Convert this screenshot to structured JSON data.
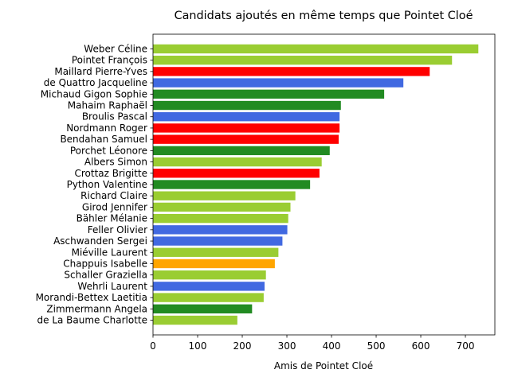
{
  "chart_data": {
    "type": "bar",
    "orientation": "horizontal",
    "title": "Candidats ajoutés en même temps que Pointet Cloé",
    "xlabel": "Amis de Pointet Cloé",
    "ylabel": "",
    "xlim": [
      0,
      766
    ],
    "xticks": [
      0,
      100,
      200,
      300,
      400,
      500,
      600,
      700
    ],
    "grid": false,
    "legend": "none",
    "colors": {
      "lightgreen": "#9acd32",
      "red": "#ff0000",
      "blue": "#4169e1",
      "darkgreen": "#228b22",
      "orange": "#ffa500"
    },
    "bars": [
      {
        "label": "Weber Céline",
        "value": 729,
        "color": "lightgreen"
      },
      {
        "label": "Pointet François",
        "value": 670,
        "color": "lightgreen"
      },
      {
        "label": "Maillard Pierre-Yves",
        "value": 620,
        "color": "red"
      },
      {
        "label": "de Quattro Jacqueline",
        "value": 561,
        "color": "blue"
      },
      {
        "label": "Michaud Gigon Sophie",
        "value": 518,
        "color": "darkgreen"
      },
      {
        "label": "Mahaim Raphaël",
        "value": 421,
        "color": "darkgreen"
      },
      {
        "label": "Broulis Pascal",
        "value": 418,
        "color": "blue"
      },
      {
        "label": "Nordmann Roger",
        "value": 418,
        "color": "red"
      },
      {
        "label": "Bendahan Samuel",
        "value": 416,
        "color": "red"
      },
      {
        "label": "Porchet Léonore",
        "value": 396,
        "color": "darkgreen"
      },
      {
        "label": "Albers Simon",
        "value": 378,
        "color": "lightgreen"
      },
      {
        "label": "Crottaz Brigitte",
        "value": 373,
        "color": "red"
      },
      {
        "label": "Python Valentine",
        "value": 352,
        "color": "darkgreen"
      },
      {
        "label": "Richard Claire",
        "value": 319,
        "color": "lightgreen"
      },
      {
        "label": "Girod Jennifer",
        "value": 308,
        "color": "lightgreen"
      },
      {
        "label": "Bähler Mélanie",
        "value": 303,
        "color": "lightgreen"
      },
      {
        "label": "Feller Olivier",
        "value": 301,
        "color": "blue"
      },
      {
        "label": "Aschwanden Sergei",
        "value": 290,
        "color": "blue"
      },
      {
        "label": "Miéville Laurent",
        "value": 281,
        "color": "lightgreen"
      },
      {
        "label": "Chappuis Isabelle",
        "value": 273,
        "color": "orange"
      },
      {
        "label": "Schaller Graziella",
        "value": 253,
        "color": "lightgreen"
      },
      {
        "label": "Wehrli Laurent",
        "value": 250,
        "color": "blue"
      },
      {
        "label": "Morandi-Bettex Laetitia",
        "value": 248,
        "color": "lightgreen"
      },
      {
        "label": "Zimmermann Angela",
        "value": 222,
        "color": "darkgreen"
      },
      {
        "label": "de La Baume Charlotte",
        "value": 189,
        "color": "lightgreen"
      }
    ]
  }
}
